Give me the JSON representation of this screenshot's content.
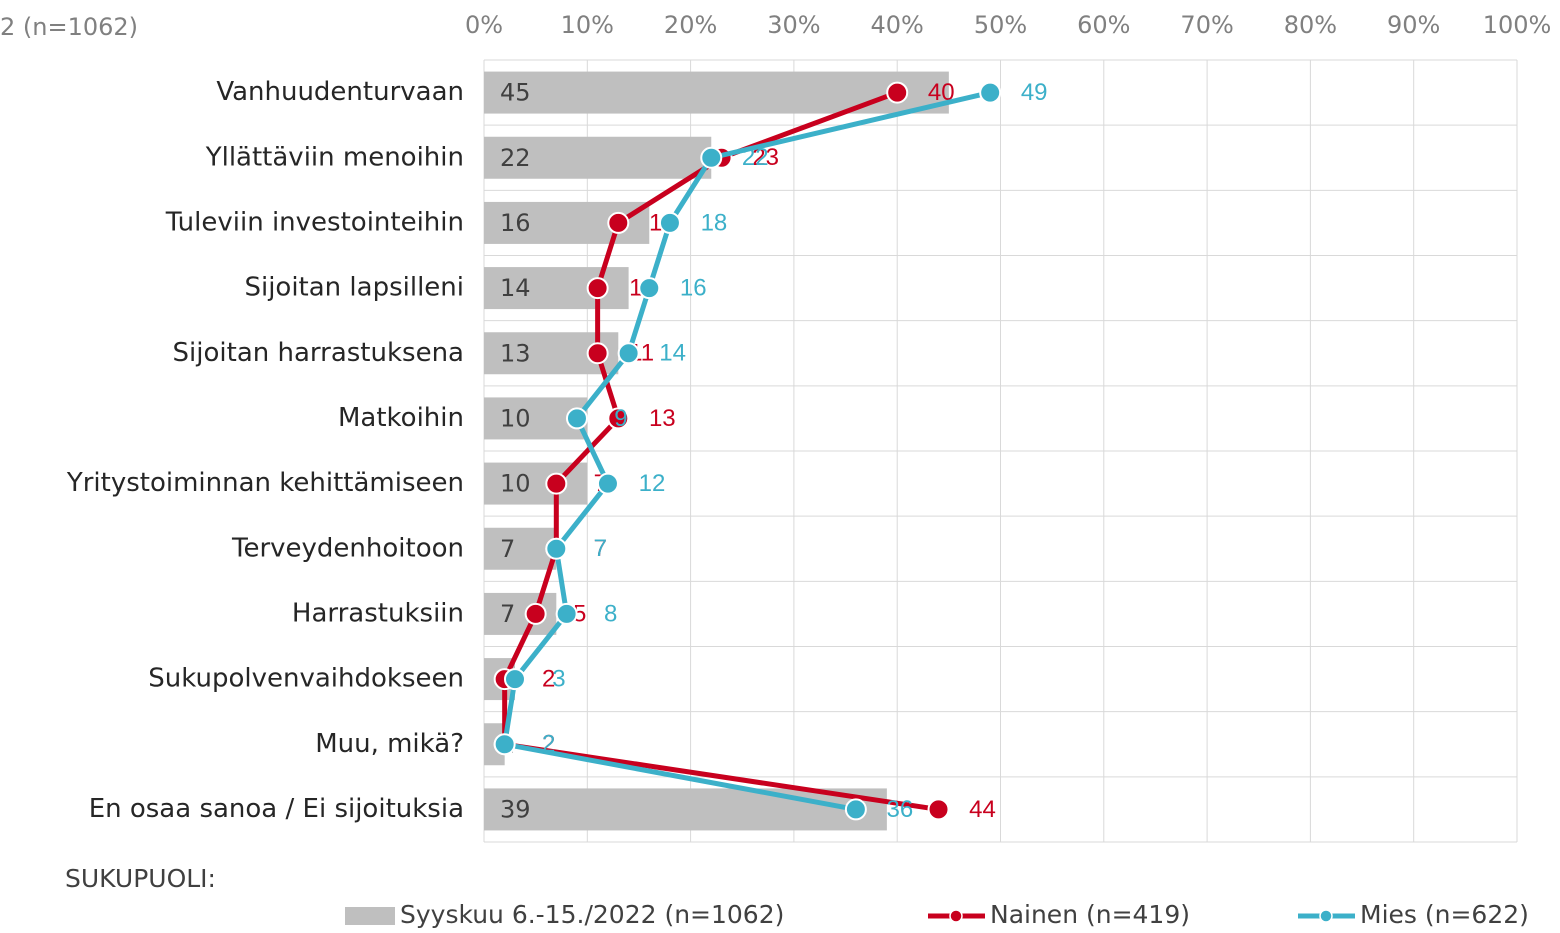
{
  "chart_data": {
    "type": "bar",
    "orientation": "horizontal",
    "subtitle": "2 (n=1062)",
    "legend_title": "SUKUPUOLI:",
    "categories": [
      "Vanhuudenturvaan",
      "Yllättäviin menoihin",
      "Tuleviin investointeihin",
      "Sijoitan lapsilleni",
      "Sijoitan harrastuksena",
      "Matkoihin",
      "Yritystoiminnan kehittämiseen",
      "Terveydenhoitoon",
      "Harrastuksiin",
      "Sukupolvenvaihdokseen",
      "Muu, mikä?",
      "En osaa sanoa / Ei sijoituksia"
    ],
    "series": [
      {
        "name": "Syyskuu 6.-15./2022 (n=1062)",
        "kind": "bar",
        "color": "#bfbfbf",
        "values": [
          45,
          22,
          16,
          14,
          13,
          10,
          10,
          7,
          7,
          3,
          2,
          39
        ]
      },
      {
        "name": "Nainen (n=419)",
        "kind": "line",
        "color": "#c8001e",
        "values": [
          40,
          23,
          13,
          11,
          11,
          13,
          7,
          7,
          5,
          2,
          2,
          44
        ]
      },
      {
        "name": "Mies (n=622)",
        "kind": "line",
        "color": "#3cb0c9",
        "values": [
          49,
          22,
          18,
          16,
          14,
          9,
          12,
          7,
          8,
          3,
          2,
          36
        ]
      }
    ],
    "xlim": [
      0,
      100
    ],
    "xticks": [
      {
        "value": 0,
        "label": "0%"
      },
      {
        "value": 10,
        "label": "10%"
      },
      {
        "value": 20,
        "label": "20%"
      },
      {
        "value": 30,
        "label": "30%"
      },
      {
        "value": 40,
        "label": "40%"
      },
      {
        "value": 50,
        "label": "50%"
      },
      {
        "value": 60,
        "label": "60%"
      },
      {
        "value": 70,
        "label": "70%"
      },
      {
        "value": 80,
        "label": "80%"
      },
      {
        "value": 90,
        "label": "90%"
      },
      {
        "value": 100,
        "label": "100%"
      }
    ],
    "grid": true
  }
}
